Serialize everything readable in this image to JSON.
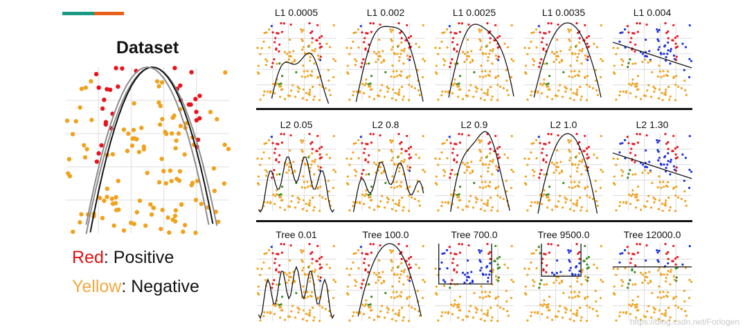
{
  "dataset": {
    "title": "Dataset"
  },
  "legend": {
    "positive": {
      "color_word": "Red",
      "rest": ": Positive"
    },
    "negative": {
      "color_word": "Yellow",
      "rest": ": Negative"
    }
  },
  "rows": [
    {
      "name": "l1",
      "panels": [
        "L1 0.0005",
        "L1 0.002",
        "L1 0.0025",
        "L1 0.0035",
        "L1 0.004"
      ]
    },
    {
      "name": "l2",
      "panels": [
        "L2 0.05",
        "L2 0.8",
        "L2 0.9",
        "L2 1.0",
        "L2 1.30"
      ]
    },
    {
      "name": "tree",
      "panels": [
        "Tree 0.01",
        "Tree 100.0",
        "Tree 700.0",
        "Tree 9500.0",
        "Tree 12000.0"
      ]
    }
  ],
  "watermark": "https://blog.csdn.net/Forlogen",
  "colors": {
    "positive": "#e8141c",
    "negative": "#f0a21e",
    "misclassified": "#3a8a1a",
    "flipped": "#1c2ee0",
    "boundary": "#111111",
    "margin": "#8a8a8a",
    "grid": "#dcdcdc",
    "accent_teal": "#1a9a86",
    "accent_orange": "#e8601c"
  }
}
